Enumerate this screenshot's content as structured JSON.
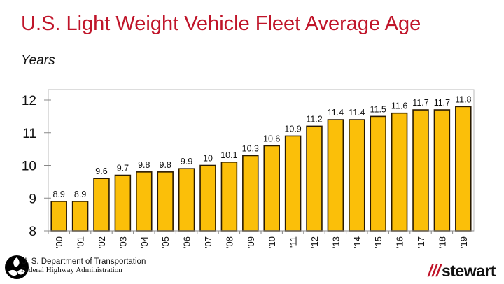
{
  "chart_data": {
    "type": "bar",
    "title": "U.S. Light Weight Vehicle Fleet Average Age",
    "ylabel": "Years",
    "xlabel": "",
    "categories": [
      "'00",
      "'01",
      "'02",
      "'03",
      "'04",
      "'05",
      "'06",
      "'07",
      "'08",
      "'09",
      "'10",
      "'11",
      "'12",
      "'13",
      "'14",
      "'15",
      "'16",
      "'17",
      "'18",
      "'19"
    ],
    "values": [
      8.9,
      8.9,
      9.6,
      9.7,
      9.8,
      9.8,
      9.9,
      10,
      10.1,
      10.3,
      10.6,
      10.9,
      11.2,
      11.4,
      11.4,
      11.5,
      11.6,
      11.7,
      11.7,
      11.8
    ],
    "data_labels": [
      "8.9",
      "8.9",
      "9.6",
      "9.7",
      "9.8",
      "9.8",
      "9.9",
      "10",
      "10.1",
      "10.3",
      "10.6",
      "10.9",
      "11.2",
      "11.4",
      "11.4",
      "11.5",
      "11.6",
      "11.7",
      "11.7",
      "11.8"
    ],
    "yticks": [
      "8",
      "9",
      "10",
      "11",
      "12"
    ],
    "ylim": [
      8,
      12.3
    ],
    "grid": false,
    "bar_color": "#fbbf09",
    "bar_edge_color": "#2a1a00"
  },
  "footer": {
    "source_line1": "U. S. Department of Transportation",
    "source_line2": "Federal Highway Administration",
    "brand": "stewart",
    "brand_mark": "///",
    "brand_color": "#c0152a"
  }
}
